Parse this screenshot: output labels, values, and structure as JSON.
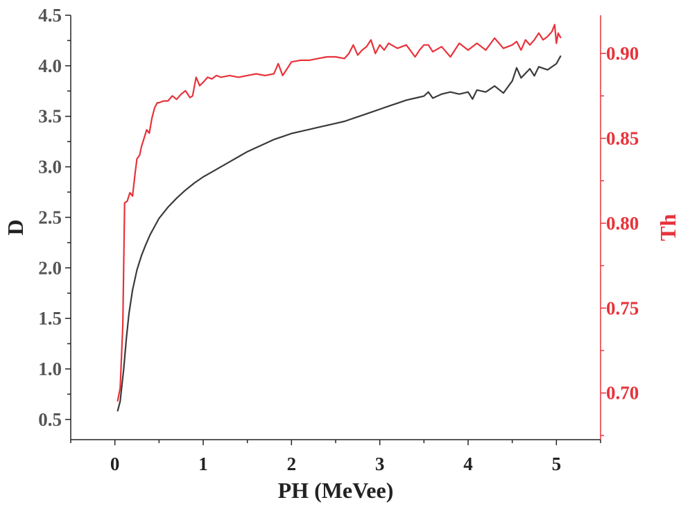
{
  "chart_data": {
    "type": "line",
    "xlabel": "PH (MeVee)",
    "ylabel_left": "D",
    "ylabel_right": "Th",
    "xlim": [
      -0.5,
      5.5
    ],
    "ylim_left": [
      0.3,
      4.5
    ],
    "ylim_right": [
      0.6725,
      0.9225
    ],
    "x_ticks": [
      "0",
      "1",
      "2",
      "3",
      "4",
      "5"
    ],
    "x_tick_values": [
      0,
      1,
      2,
      3,
      4,
      5
    ],
    "y_left_ticks": [
      "0.5",
      "1.0",
      "1.5",
      "2.0",
      "2.5",
      "3.0",
      "3.5",
      "4.0",
      "4.5"
    ],
    "y_left_tick_values": [
      0.5,
      1.0,
      1.5,
      2.0,
      2.5,
      3.0,
      3.5,
      4.0,
      4.5
    ],
    "y_right_ticks": [
      "0.70",
      "0.75",
      "0.80",
      "0.85",
      "0.90"
    ],
    "y_right_tick_values": [
      0.7,
      0.75,
      0.8,
      0.85,
      0.9
    ],
    "colors": {
      "left": "#3a3a3a",
      "right": "#e8323a"
    },
    "series": [
      {
        "name": "D",
        "axis": "left",
        "x": [
          0.03,
          0.06,
          0.1,
          0.13,
          0.16,
          0.2,
          0.25,
          0.3,
          0.35,
          0.4,
          0.45,
          0.5,
          0.6,
          0.7,
          0.8,
          0.9,
          1.0,
          1.1,
          1.2,
          1.3,
          1.4,
          1.5,
          1.6,
          1.7,
          1.8,
          1.9,
          2.0,
          2.1,
          2.2,
          2.3,
          2.4,
          2.5,
          2.6,
          2.7,
          2.8,
          2.9,
          3.0,
          3.1,
          3.2,
          3.3,
          3.4,
          3.5,
          3.55,
          3.6,
          3.7,
          3.8,
          3.9,
          4.0,
          4.05,
          4.1,
          4.2,
          4.3,
          4.4,
          4.5,
          4.55,
          4.6,
          4.7,
          4.75,
          4.8,
          4.9,
          5.0,
          5.05
        ],
        "values": [
          0.58,
          0.68,
          1.0,
          1.3,
          1.55,
          1.78,
          1.98,
          2.12,
          2.23,
          2.33,
          2.41,
          2.49,
          2.6,
          2.69,
          2.77,
          2.84,
          2.9,
          2.95,
          3.0,
          3.05,
          3.1,
          3.15,
          3.19,
          3.23,
          3.27,
          3.3,
          3.33,
          3.35,
          3.37,
          3.39,
          3.41,
          3.43,
          3.45,
          3.48,
          3.51,
          3.54,
          3.57,
          3.6,
          3.63,
          3.66,
          3.68,
          3.7,
          3.74,
          3.68,
          3.72,
          3.74,
          3.72,
          3.74,
          3.67,
          3.76,
          3.74,
          3.8,
          3.73,
          3.85,
          3.98,
          3.88,
          3.97,
          3.9,
          3.99,
          3.96,
          4.02,
          4.1
        ]
      },
      {
        "name": "Th",
        "axis": "right",
        "x": [
          0.03,
          0.06,
          0.09,
          0.11,
          0.14,
          0.17,
          0.2,
          0.23,
          0.25,
          0.28,
          0.3,
          0.33,
          0.36,
          0.39,
          0.42,
          0.45,
          0.48,
          0.5,
          0.55,
          0.6,
          0.65,
          0.7,
          0.75,
          0.8,
          0.85,
          0.88,
          0.92,
          0.96,
          1.0,
          1.05,
          1.1,
          1.15,
          1.2,
          1.3,
          1.4,
          1.5,
          1.6,
          1.7,
          1.8,
          1.85,
          1.9,
          1.95,
          2.0,
          2.1,
          2.2,
          2.3,
          2.4,
          2.5,
          2.6,
          2.65,
          2.7,
          2.75,
          2.8,
          2.85,
          2.9,
          2.95,
          3.0,
          3.05,
          3.1,
          3.2,
          3.3,
          3.4,
          3.45,
          3.5,
          3.55,
          3.6,
          3.7,
          3.8,
          3.9,
          4.0,
          4.1,
          4.2,
          4.3,
          4.4,
          4.5,
          4.55,
          4.6,
          4.65,
          4.7,
          4.75,
          4.8,
          4.85,
          4.9,
          4.95,
          4.98,
          5.0,
          5.02,
          5.05
        ],
        "values": [
          0.695,
          0.703,
          0.74,
          0.812,
          0.813,
          0.818,
          0.816,
          0.83,
          0.838,
          0.84,
          0.845,
          0.85,
          0.855,
          0.853,
          0.862,
          0.868,
          0.871,
          0.871,
          0.872,
          0.872,
          0.875,
          0.873,
          0.876,
          0.878,
          0.874,
          0.875,
          0.886,
          0.881,
          0.883,
          0.886,
          0.885,
          0.887,
          0.886,
          0.887,
          0.886,
          0.887,
          0.888,
          0.887,
          0.888,
          0.894,
          0.887,
          0.891,
          0.895,
          0.896,
          0.896,
          0.897,
          0.898,
          0.898,
          0.897,
          0.9,
          0.905,
          0.899,
          0.902,
          0.904,
          0.908,
          0.9,
          0.905,
          0.902,
          0.906,
          0.903,
          0.905,
          0.898,
          0.902,
          0.905,
          0.905,
          0.901,
          0.904,
          0.898,
          0.906,
          0.902,
          0.906,
          0.902,
          0.909,
          0.903,
          0.905,
          0.907,
          0.902,
          0.908,
          0.905,
          0.908,
          0.912,
          0.908,
          0.91,
          0.913,
          0.917,
          0.906,
          0.912,
          0.909
        ]
      }
    ]
  }
}
